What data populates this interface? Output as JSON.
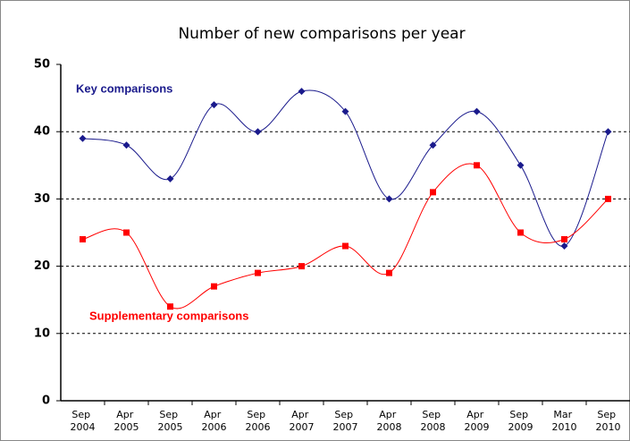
{
  "chart_data": {
    "type": "line",
    "title": "Number of new comparisons per year",
    "categories": [
      "Sep 2004",
      "Apr 2005",
      "Sep 2005",
      "Apr 2006",
      "Sep 2006",
      "Apr 2007",
      "Sep 2007",
      "Apr 2008",
      "Sep 2008",
      "Apr 2009",
      "Sep 2009",
      "Mar 2010",
      "Sep 2010"
    ],
    "series": [
      {
        "name": "Key comparisons",
        "color": "#1a1a8c",
        "marker": "diamond",
        "values": [
          39,
          38,
          33,
          44,
          40,
          46,
          43,
          30,
          38,
          43,
          35,
          23,
          40
        ]
      },
      {
        "name": "Supplementary comparisons",
        "color": "#ff0000",
        "marker": "square",
        "values": [
          24,
          25,
          14,
          17,
          19,
          20,
          23,
          19,
          31,
          35,
          25,
          24,
          30
        ]
      }
    ],
    "ylim": [
      0,
      50
    ],
    "yticks": [
      0,
      10,
      20,
      30,
      40,
      50
    ],
    "grid": true,
    "smooth": true
  }
}
